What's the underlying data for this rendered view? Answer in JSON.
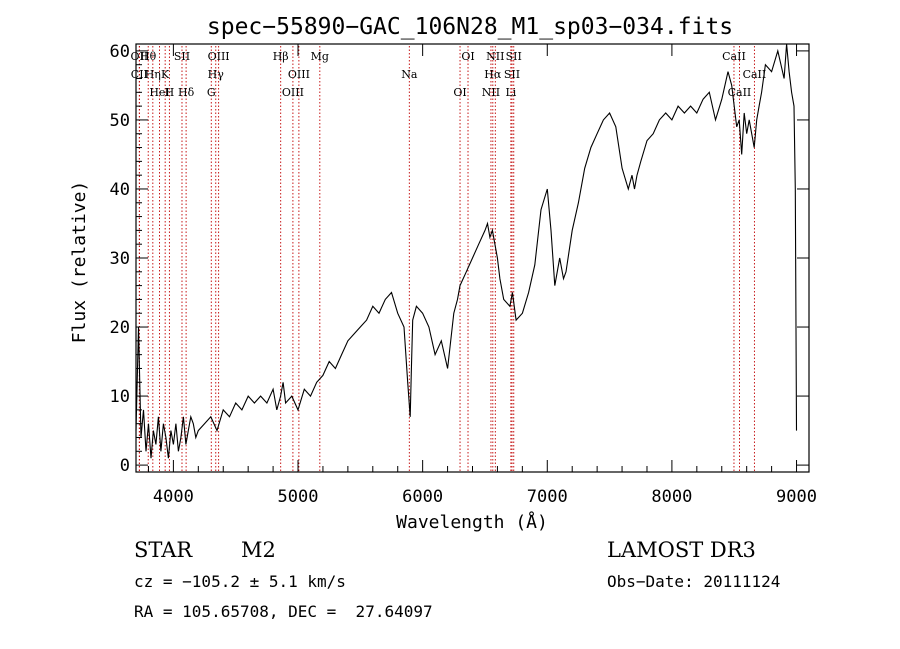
{
  "chart_data": {
    "type": "line",
    "title": "spec−55890−GAC_106N28_M1_sp03−034.fits",
    "xlabel": "Wavelength (Å)",
    "ylabel": "Flux (relative)",
    "xlim": [
      3700,
      9100
    ],
    "ylim": [
      -1,
      61
    ],
    "xticks": [
      4000,
      5000,
      6000,
      7000,
      8000,
      9000
    ],
    "yticks": [
      0,
      10,
      20,
      30,
      40,
      50,
      60
    ],
    "grid": false,
    "series": [
      {
        "name": "flux",
        "x": [
          3700,
          3720,
          3740,
          3760,
          3780,
          3800,
          3820,
          3840,
          3860,
          3880,
          3900,
          3920,
          3940,
          3960,
          3980,
          4000,
          4020,
          4040,
          4060,
          4080,
          4100,
          4120,
          4140,
          4160,
          4180,
          4200,
          4250,
          4300,
          4350,
          4400,
          4450,
          4500,
          4550,
          4600,
          4650,
          4700,
          4750,
          4800,
          4830,
          4860,
          4880,
          4900,
          4950,
          5000,
          5050,
          5100,
          5150,
          5200,
          5250,
          5300,
          5350,
          5400,
          5450,
          5500,
          5550,
          5600,
          5650,
          5700,
          5750,
          5800,
          5850,
          5880,
          5900,
          5910,
          5920,
          5950,
          6000,
          6050,
          6100,
          6150,
          6200,
          6250,
          6280,
          6300,
          6350,
          6400,
          6450,
          6500,
          6520,
          6540,
          6560,
          6580,
          6600,
          6620,
          6650,
          6700,
          6720,
          6750,
          6800,
          6850,
          6900,
          6950,
          7000,
          7030,
          7060,
          7100,
          7130,
          7150,
          7200,
          7250,
          7300,
          7350,
          7400,
          7450,
          7500,
          7550,
          7600,
          7650,
          7680,
          7700,
          7720,
          7750,
          7800,
          7850,
          7900,
          7950,
          8000,
          8050,
          8100,
          8150,
          8200,
          8250,
          8300,
          8350,
          8400,
          8450,
          8480,
          8500,
          8520,
          8540,
          8560,
          8580,
          8600,
          8620,
          8640,
          8660,
          8680,
          8700,
          8720,
          8750,
          8800,
          8850,
          8900,
          8920,
          8940,
          8960,
          8980,
          8990,
          9000
        ],
        "y": [
          5,
          20,
          4,
          8,
          2,
          6,
          1,
          5,
          3,
          7,
          2,
          6,
          4,
          1,
          5,
          3,
          6,
          2,
          4,
          7,
          3,
          5,
          7,
          6,
          4,
          5,
          6,
          7,
          5,
          8,
          7,
          9,
          8,
          10,
          9,
          10,
          9,
          11,
          8,
          10,
          12,
          9,
          10,
          8,
          11,
          10,
          12,
          13,
          15,
          14,
          16,
          18,
          19,
          20,
          21,
          23,
          22,
          24,
          25,
          22,
          20,
          12,
          7,
          14,
          21,
          23,
          22,
          20,
          16,
          18,
          14,
          22,
          24,
          26,
          28,
          30,
          32,
          34,
          35,
          33,
          34,
          32,
          30,
          27,
          24,
          23,
          25,
          21,
          22,
          25,
          29,
          37,
          40,
          34,
          26,
          30,
          27,
          28,
          34,
          38,
          43,
          46,
          48,
          50,
          51,
          49,
          43,
          40,
          42,
          40,
          42,
          44,
          47,
          48,
          50,
          51,
          50,
          52,
          51,
          52,
          51,
          53,
          54,
          50,
          53,
          57,
          55,
          52,
          49,
          50,
          45,
          51,
          48,
          50,
          48,
          46,
          50,
          52,
          54,
          58,
          57,
          60,
          56,
          62,
          57,
          54,
          52,
          40,
          5
        ]
      }
    ],
    "lines": [
      {
        "label": "Hθ",
        "wavelength": 3798
      },
      {
        "label": "K",
        "wavelength": 3934
      },
      {
        "label": "Hδ",
        "wavelength": 4102
      },
      {
        "label": "OII",
        "wavelength": 3727
      },
      {
        "label": "CII",
        "wavelength": 3727
      },
      {
        "label": "HeI",
        "wavelength": 3889
      },
      {
        "label": "SII",
        "wavelength": 4069
      },
      {
        "label": "Hη",
        "wavelength": 3835
      },
      {
        "label": "H",
        "wavelength": 3968
      },
      {
        "label": "OIII",
        "wavelength": 4363
      },
      {
        "label": "Hγ",
        "wavelength": 4340
      },
      {
        "label": "G",
        "wavelength": 4304
      },
      {
        "label": "Hβ",
        "wavelength": 4861
      },
      {
        "label": "OIII",
        "wavelength": 5007
      },
      {
        "label": "OIII",
        "wavelength": 4959
      },
      {
        "label": "Mg",
        "wavelength": 5175
      },
      {
        "label": "Na",
        "wavelength": 5893
      },
      {
        "label": "OI",
        "wavelength": 6300
      },
      {
        "label": "OI",
        "wavelength": 6364
      },
      {
        "label": "Hα",
        "wavelength": 6563
      },
      {
        "label": "NII",
        "wavelength": 6548
      },
      {
        "label": "NII",
        "wavelength": 6583
      },
      {
        "label": "SII",
        "wavelength": 6717
      },
      {
        "label": "Li",
        "wavelength": 6708
      },
      {
        "label": "SII",
        "wavelength": 6731
      },
      {
        "label": "CaII",
        "wavelength": 8662
      },
      {
        "label": "CaII",
        "wavelength": 8542
      },
      {
        "label": "CaII",
        "wavelength": 8498
      }
    ],
    "line_color": "#c00000"
  },
  "footer": {
    "object_type": "STAR",
    "subclass": "M2",
    "survey": "LAMOST DR3",
    "redshift": "cz = −105.2 ± 5.1 km/s",
    "obs_date": "Obs−Date: 20111124",
    "coords": "RA = 105.65708, DEC =  27.64097"
  }
}
